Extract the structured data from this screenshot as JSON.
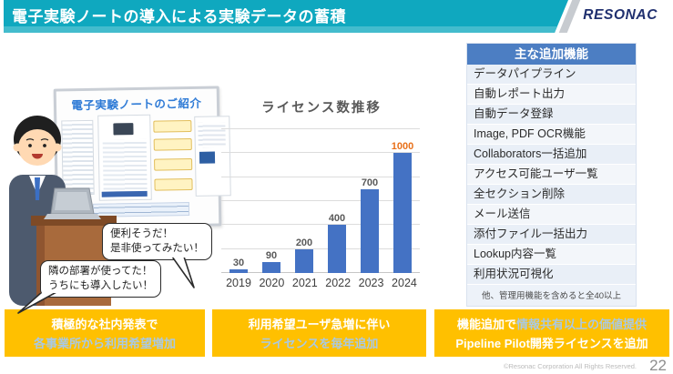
{
  "header": {
    "title": "電子実験ノートの導入による実験データの蓄積",
    "logo": "RESONAC",
    "bar_color": "#0FA8BF",
    "logo_color": "#20306F"
  },
  "board": {
    "title": "電子実験ノートのご紹介"
  },
  "bubbles": [
    {
      "line1": "便利そうだ！",
      "line2": "是非使ってみたい！"
    },
    {
      "line1": "隣の部署が使ってた！",
      "line2": "うちにも導入したい！"
    }
  ],
  "chart_data": {
    "type": "bar",
    "title": "ライセンス数推移",
    "categories": [
      "2019",
      "2020",
      "2021",
      "2022",
      "2023",
      "2024"
    ],
    "values": [
      30,
      90,
      200,
      400,
      700,
      1000
    ],
    "value_label_colors": [
      "#595959",
      "#595959",
      "#595959",
      "#595959",
      "#595959",
      "#E8701A"
    ],
    "bar_color": "#4472C4",
    "ylim": [
      0,
      1200
    ],
    "grid_step": 200,
    "grid": true,
    "legend": "none",
    "xlabel": "",
    "ylabel": ""
  },
  "features": {
    "title": "主な追加機能",
    "items": [
      "データパイプライン",
      "自動レポート出力",
      "自動データ登録",
      "Image, PDF OCR機能",
      "Collaborators一括追加",
      "アクセス可能ユーザ一覧",
      "全セクション削除",
      "メール送信",
      "添付ファイル一括出力",
      "Lookup内容一覧",
      "利用状況可視化"
    ],
    "note": "他、管理用機能を含めると全40以上",
    "header_color": "#4C7EC3"
  },
  "boxes": [
    {
      "line1": "積極的な社内発表で",
      "line2": "各事業所から利用希望増加"
    },
    {
      "line1": "利用希望ユーザ急増に伴い",
      "line2": "ライセンスを毎年追加"
    },
    {
      "line1_white": "機能追加で",
      "line1_pale": "情報共有以上の価値提供",
      "line2": "Pipeline Pilot開発ライセンスを追加"
    }
  ],
  "box_color": "#FFC000",
  "footer": {
    "copyright": "©Resonac Corporation All Rights Reserved.",
    "page": "22"
  }
}
